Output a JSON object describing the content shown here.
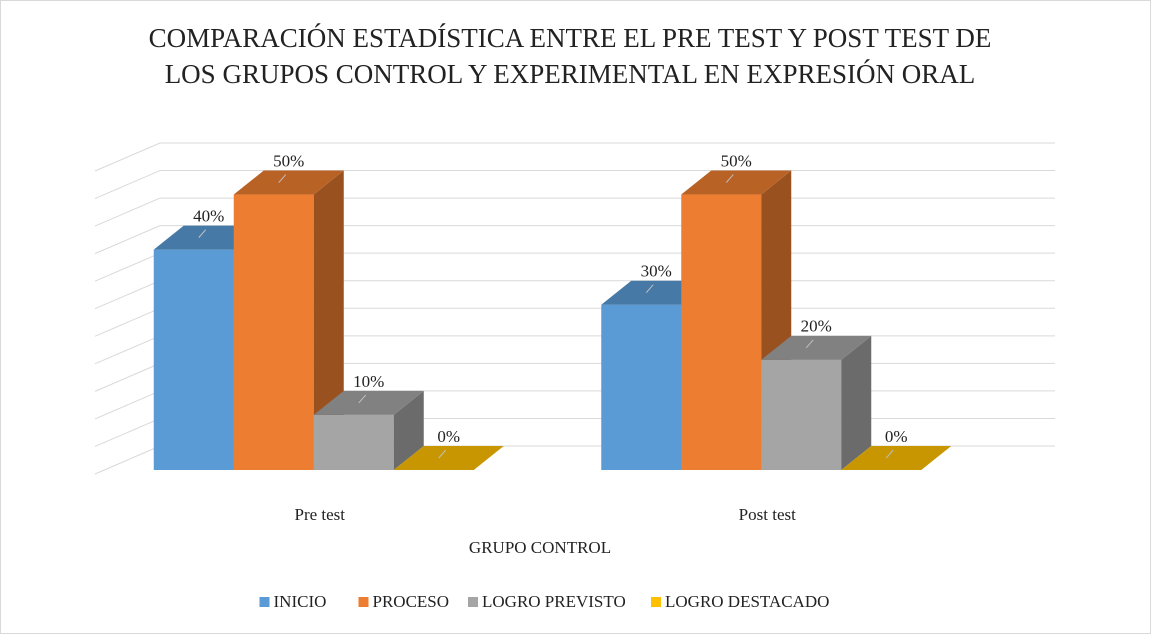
{
  "chart_data": {
    "type": "bar3d",
    "title": "COMPARACIÓN ESTADÍSTICA ENTRE EL PRE TEST Y POST TEST DE LOS GRUPOS CONTROL Y EXPERIMENTAL EN EXPRESIÓN ORAL",
    "xlabel": "GRUPO CONTROL",
    "categories": [
      "Pre test",
      "Post test"
    ],
    "series": [
      {
        "name": "INICIO",
        "color": "#5b9bd5",
        "values": [
          40,
          30
        ],
        "value_labels": [
          "40%",
          "30%"
        ]
      },
      {
        "name": "PROCESO",
        "color": "#ed7d31",
        "values": [
          50,
          50
        ],
        "value_labels": [
          "50%",
          "50%"
        ]
      },
      {
        "name": "LOGRO PREVISTO",
        "color": "#a5a5a5",
        "values": [
          10,
          20
        ],
        "value_labels": [
          "10%",
          "20%"
        ]
      },
      {
        "name": "LOGRO DESTACADO",
        "color": "#ffc000",
        "values": [
          0,
          0
        ],
        "value_labels": [
          "0%",
          "0%"
        ]
      }
    ],
    "ylim": [
      0,
      55
    ],
    "yticks": [
      0,
      5,
      10,
      15,
      20,
      25,
      30,
      35,
      40,
      45,
      50,
      55
    ],
    "grid": true,
    "legend": "bottom"
  }
}
